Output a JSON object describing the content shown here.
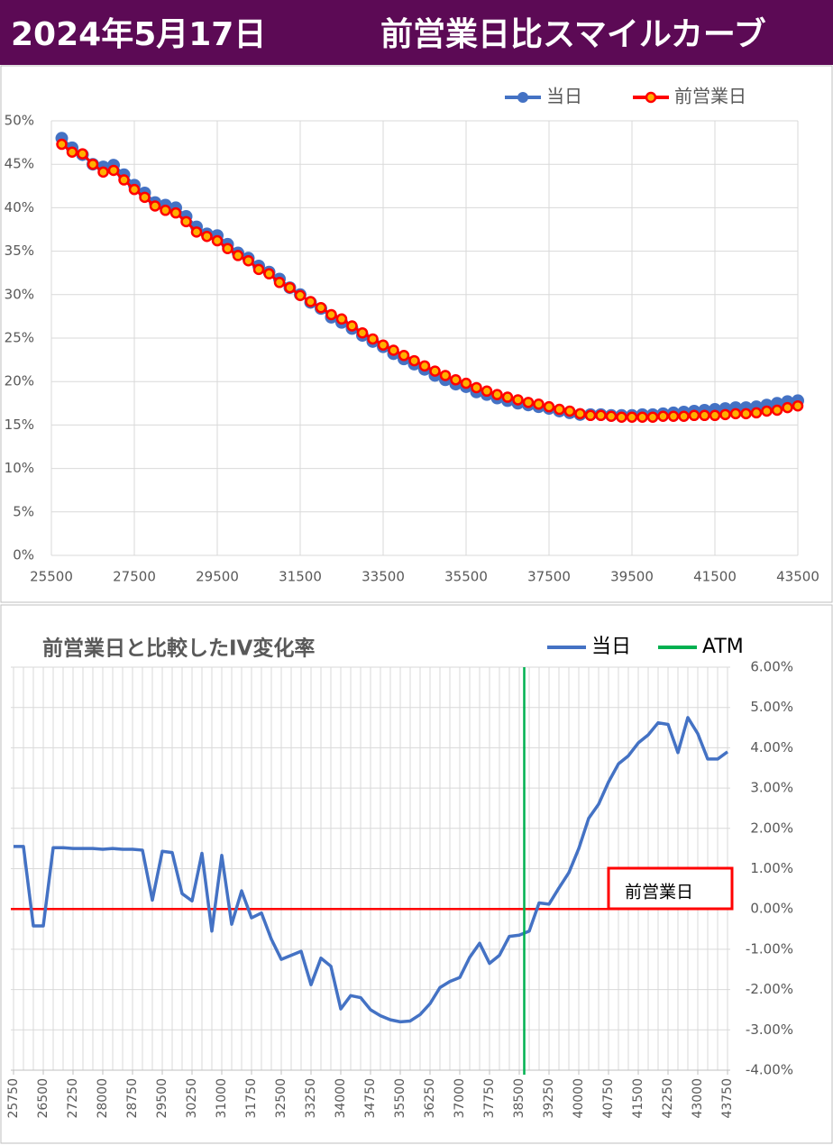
{
  "header": {
    "date": "2024年5月17日",
    "title": "前営業日比スマイルカーブ"
  },
  "chart_data": [
    {
      "type": "line",
      "x": [
        25750,
        26000,
        26250,
        26500,
        26750,
        27000,
        27250,
        27500,
        27750,
        28000,
        28250,
        28500,
        28750,
        29000,
        29250,
        29500,
        29750,
        30000,
        30250,
        30500,
        30750,
        31000,
        31250,
        31500,
        31750,
        32000,
        32250,
        32500,
        32750,
        33000,
        33250,
        33500,
        33750,
        34000,
        34250,
        34500,
        34750,
        35000,
        35250,
        35500,
        35750,
        36000,
        36250,
        36500,
        36750,
        37000,
        37250,
        37500,
        37750,
        38000,
        38250,
        38500,
        38750,
        39000,
        39250,
        39500,
        39750,
        40000,
        40250,
        40500,
        40750,
        41000,
        41250,
        41500,
        41750,
        42000,
        42250,
        42500,
        42750,
        43000,
        43250,
        43500
      ],
      "series": [
        {
          "name": "当日",
          "color": "#4472c4",
          "marker": true,
          "values": [
            48.0,
            46.9,
            46.1,
            45.0,
            44.7,
            44.9,
            43.8,
            42.6,
            41.7,
            40.6,
            40.3,
            40.0,
            39.0,
            37.8,
            37.0,
            36.8,
            35.8,
            34.8,
            34.2,
            33.3,
            32.6,
            31.8,
            30.8,
            30.0,
            29.1,
            28.4,
            27.4,
            26.8,
            26.1,
            25.3,
            24.6,
            24.0,
            23.2,
            22.6,
            22.0,
            21.4,
            20.7,
            20.2,
            19.7,
            19.4,
            18.8,
            18.5,
            18.1,
            17.8,
            17.5,
            17.3,
            17.1,
            16.9,
            16.6,
            16.4,
            16.2,
            16.2,
            16.2,
            16.1,
            16.1,
            16.1,
            16.2,
            16.2,
            16.3,
            16.4,
            16.5,
            16.6,
            16.7,
            16.8,
            16.9,
            17.0,
            17.0,
            17.1,
            17.3,
            17.5,
            17.7,
            17.8
          ]
        },
        {
          "name": "前営業日",
          "color": "#ff0000",
          "marker": true,
          "values": [
            47.3,
            46.4,
            46.2,
            45.0,
            44.1,
            44.3,
            43.2,
            42.1,
            41.2,
            40.2,
            39.7,
            39.4,
            38.4,
            37.2,
            36.7,
            36.2,
            35.3,
            34.5,
            33.9,
            32.9,
            32.4,
            31.4,
            30.8,
            29.9,
            29.2,
            28.5,
            27.7,
            27.2,
            26.4,
            25.6,
            24.9,
            24.2,
            23.6,
            23.0,
            22.4,
            21.8,
            21.2,
            20.7,
            20.2,
            19.8,
            19.3,
            18.9,
            18.5,
            18.2,
            17.9,
            17.6,
            17.4,
            17.1,
            16.8,
            16.6,
            16.3,
            16.1,
            16.1,
            16.0,
            15.9,
            15.9,
            15.9,
            15.9,
            16.0,
            16.0,
            16.0,
            16.1,
            16.1,
            16.1,
            16.2,
            16.3,
            16.3,
            16.4,
            16.6,
            16.7,
            17.0,
            17.2
          ]
        }
      ],
      "xlim": [
        25500,
        43500
      ],
      "xticks": [
        25500,
        27500,
        29500,
        31500,
        33500,
        35500,
        37500,
        39500,
        41500,
        43500
      ],
      "ylim": [
        0,
        50
      ],
      "yticks": [
        {
          "value": 0,
          "label": "0%"
        },
        {
          "value": 5,
          "label": "5%"
        },
        {
          "value": 10,
          "label": "10%"
        },
        {
          "value": 15,
          "label": "15%"
        },
        {
          "value": 20,
          "label": "20%"
        },
        {
          "value": 25,
          "label": "25%"
        },
        {
          "value": 30,
          "label": "30%"
        },
        {
          "value": 35,
          "label": "35%"
        },
        {
          "value": 40,
          "label": "40%"
        },
        {
          "value": 45,
          "label": "45%"
        },
        {
          "value": 50,
          "label": "50%"
        }
      ],
      "grid": true,
      "legend": "top-right"
    },
    {
      "type": "line",
      "title": "前営業日と比較したIV変化率",
      "x": [
        25750,
        26000,
        26250,
        26500,
        26750,
        27000,
        27250,
        27500,
        27750,
        28000,
        28250,
        28500,
        28750,
        29000,
        29250,
        29500,
        29750,
        30000,
        30250,
        30500,
        30750,
        31000,
        31250,
        31500,
        31750,
        32000,
        32250,
        32500,
        32750,
        33000,
        33250,
        33500,
        33750,
        34000,
        34250,
        34500,
        34750,
        35000,
        35250,
        35500,
        35750,
        36000,
        36250,
        36500,
        36750,
        37000,
        37250,
        37500,
        37750,
        38000,
        38250,
        38500,
        38750,
        39000,
        39250,
        39500,
        39750,
        40000,
        40250,
        40500,
        40750,
        41000,
        41250,
        41500,
        41750,
        42000,
        42250,
        42500,
        42750,
        43000,
        43250,
        43500,
        43750
      ],
      "series": [
        {
          "name": "当日",
          "color": "#4472c4",
          "axis": "y2",
          "values": [
            1.55,
            1.55,
            -0.42,
            -0.42,
            1.52,
            1.52,
            1.5,
            1.5,
            1.5,
            1.48,
            1.5,
            1.48,
            1.48,
            1.46,
            0.22,
            1.43,
            1.4,
            0.38,
            0.2,
            1.38,
            -0.55,
            1.33,
            -0.38,
            0.45,
            -0.22,
            -0.1,
            -0.75,
            -1.25,
            -1.15,
            -1.05,
            -1.88,
            -1.22,
            -1.42,
            -2.48,
            -2.15,
            -2.2,
            -2.5,
            -2.65,
            -2.75,
            -2.8,
            -2.78,
            -2.62,
            -2.35,
            -1.95,
            -1.8,
            -1.7,
            -1.2,
            -0.85,
            -1.35,
            -1.15,
            -0.68,
            -0.65,
            -0.55,
            0.15,
            0.12,
            0.52,
            0.9,
            1.5,
            2.25,
            2.6,
            3.15,
            3.6,
            3.8,
            4.12,
            4.32,
            4.62,
            4.58,
            3.88,
            4.75,
            4.35,
            3.72,
            3.72,
            3.9
          ]
        }
      ],
      "reference_lines": [
        {
          "name": "前営業日",
          "color": "#ff0000",
          "y": 0,
          "axis": "y2",
          "boxed": true
        },
        {
          "name": "ATM",
          "color": "#00b050",
          "x": 38625,
          "legend": true
        }
      ],
      "xlim": [
        25750,
        43750
      ],
      "xticks": [
        25750,
        26500,
        27250,
        28000,
        28750,
        29500,
        30250,
        31000,
        31750,
        32500,
        33250,
        34000,
        34750,
        35500,
        36250,
        37000,
        37750,
        38500,
        39250,
        40000,
        40750,
        41500,
        42250,
        43000,
        43750
      ],
      "y2lim": [
        -4,
        6
      ],
      "y2ticks": [
        {
          "value": -4,
          "label": "-4.00%"
        },
        {
          "value": -3,
          "label": "-3.00%"
        },
        {
          "value": -2,
          "label": "-2.00%"
        },
        {
          "value": -1,
          "label": "-1.00%"
        },
        {
          "value": 0,
          "label": "0.00%"
        },
        {
          "value": 1,
          "label": "1.00%"
        },
        {
          "value": 2,
          "label": "2.00%"
        },
        {
          "value": 3,
          "label": "3.00%"
        },
        {
          "value": 4,
          "label": "4.00%"
        },
        {
          "value": 5,
          "label": "5.00%"
        },
        {
          "value": 6,
          "label": "6.00%"
        }
      ],
      "grid": true,
      "legend": "top-right"
    }
  ]
}
